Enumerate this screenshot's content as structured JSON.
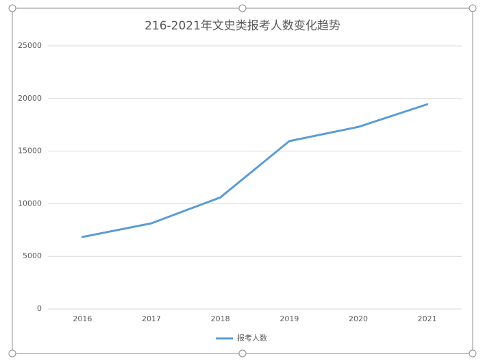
{
  "chart_data": {
    "type": "line",
    "title": "216-2021年文史类报考人数变化趋势",
    "categories": [
      "2016",
      "2017",
      "2018",
      "2019",
      "2020",
      "2021"
    ],
    "series": [
      {
        "name": "报考人数",
        "color": "#5b9bd5",
        "values": [
          6840,
          8140,
          10600,
          15950,
          17300,
          19450
        ]
      }
    ],
    "ylim": [
      0,
      25000
    ],
    "yticks": [
      0,
      5000,
      10000,
      15000,
      20000,
      25000
    ],
    "grid": true,
    "legend": "bottom"
  }
}
